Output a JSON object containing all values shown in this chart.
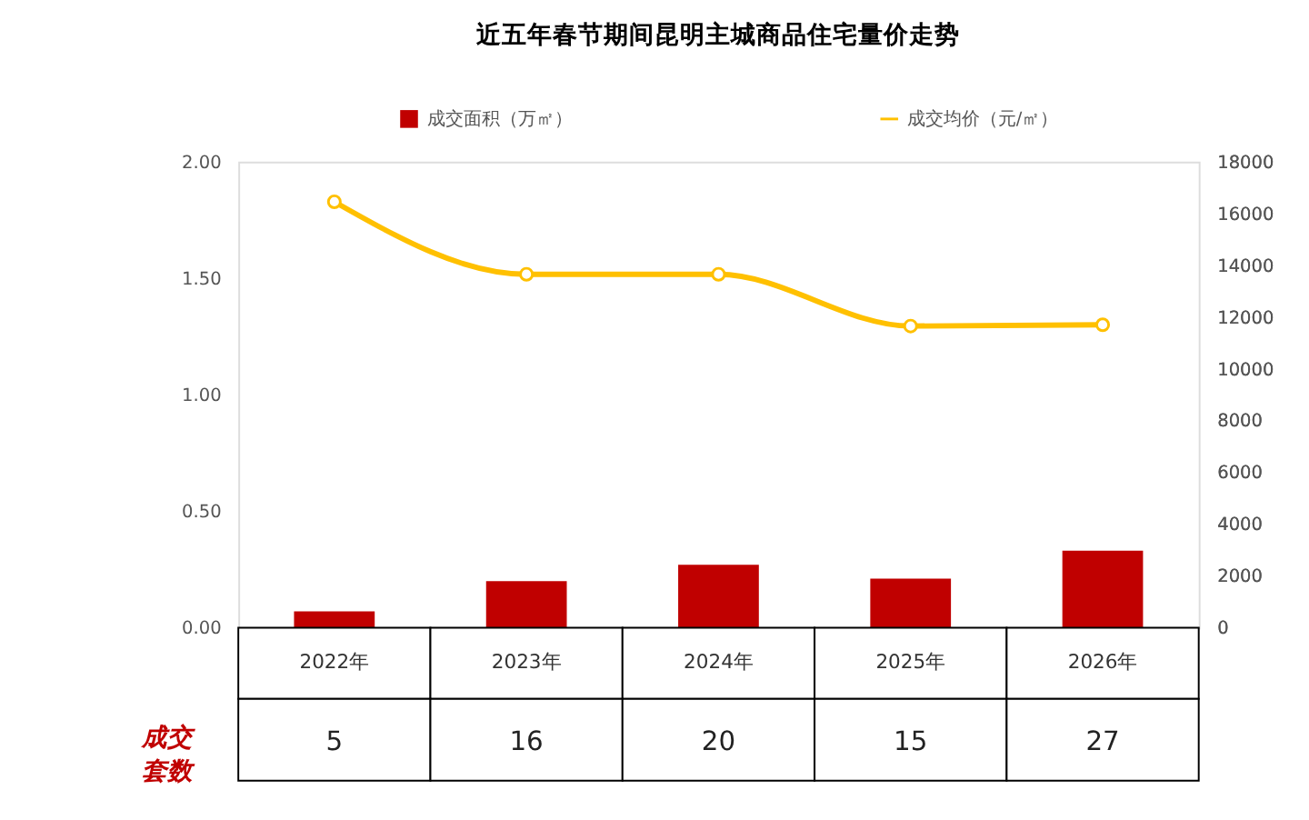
{
  "chart_data": {
    "type": "bar",
    "title": "近五年春节期间昆明主城商品住宅量价走势",
    "categories": [
      "2022年",
      "2023年",
      "2024年",
      "2025年",
      "2026年"
    ],
    "series": [
      {
        "name": "成交面积（万㎡）",
        "color": "#c00000",
        "values": [
          0.07,
          0.2,
          0.27,
          0.21,
          0.33
        ]
      },
      {
        "name": "成交均价（元/㎡）",
        "type": "line",
        "axis": "y2",
        "color": "#ffc000",
        "values": [
          16450,
          13650,
          13650,
          11650,
          11700
        ]
      }
    ],
    "annotations": [
      "成交套数",
      "5",
      "16",
      "20",
      "15",
      "27"
    ],
    "ylim": [
      0,
      2
    ],
    "yticks": [
      {
        "value": 0,
        "label": "0.00"
      },
      {
        "value": 0.5,
        "label": "0.50"
      },
      {
        "value": 1,
        "label": "1.00"
      },
      {
        "value": 1.5,
        "label": "1.50"
      },
      {
        "value": 2,
        "label": "2.00"
      }
    ],
    "y2lim": [
      0,
      18000
    ],
    "y2ticks": [
      0,
      2000,
      4000,
      6000,
      8000,
      10000,
      12000,
      14000,
      16000,
      18000
    ],
    "grid": false,
    "legend": "top",
    "marker": "circle"
  }
}
